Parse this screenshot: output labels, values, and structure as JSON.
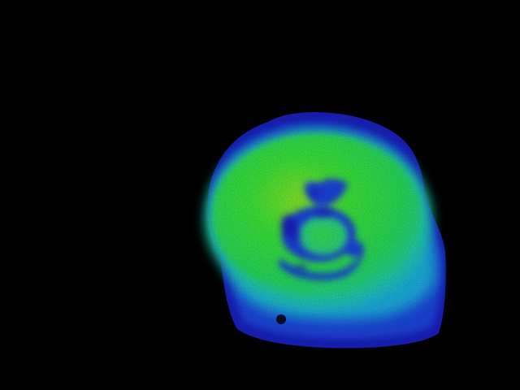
{
  "image": {
    "kind": "false-color thermal/intensity image",
    "background_color": "#000000",
    "palette": {
      "dark_blue": "#1a22c8",
      "blue": "#1f46e6",
      "cyan": "#1ab6e8",
      "teal": "#22d6b0",
      "green": "#27e65a",
      "lime": "#7cf02c",
      "dark_spot": "#0a0a24"
    }
  }
}
